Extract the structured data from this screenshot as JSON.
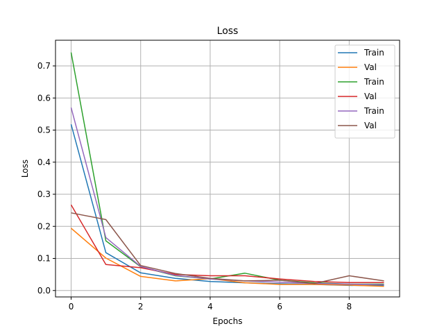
{
  "chart_data": {
    "type": "line",
    "title": "Loss",
    "xlabel": "Epochs",
    "ylabel": "Loss",
    "xlim": [
      -0.45,
      9.45
    ],
    "ylim": [
      -0.02,
      0.78
    ],
    "xticks": [
      0,
      2,
      4,
      6,
      8
    ],
    "yticks": [
      0.0,
      0.1,
      0.2,
      0.3,
      0.4,
      0.5,
      0.6,
      0.7
    ],
    "ytick_labels": [
      "0.0",
      "0.1",
      "0.2",
      "0.3",
      "0.4",
      "0.5",
      "0.6",
      "0.7"
    ],
    "grid": true,
    "legend_position": "top-right",
    "x": [
      0,
      1,
      2,
      3,
      4,
      5,
      6,
      7,
      8,
      9
    ],
    "series": [
      {
        "name": "Train",
        "color": "#1f77b4",
        "values": [
          0.518,
          0.118,
          0.055,
          0.038,
          0.028,
          0.024,
          0.021,
          0.019,
          0.016,
          0.015
        ]
      },
      {
        "name": "Val",
        "color": "#ff7f0e",
        "values": [
          0.194,
          0.101,
          0.044,
          0.03,
          0.037,
          0.024,
          0.019,
          0.019,
          0.017,
          0.013
        ]
      },
      {
        "name": "Train",
        "color": "#2ca02c",
        "values": [
          0.742,
          0.155,
          0.074,
          0.046,
          0.036,
          0.054,
          0.032,
          0.024,
          0.02,
          0.02
        ]
      },
      {
        "name": "Val",
        "color": "#d62728",
        "values": [
          0.267,
          0.081,
          0.071,
          0.05,
          0.046,
          0.046,
          0.036,
          0.028,
          0.025,
          0.025
        ]
      },
      {
        "name": "Train",
        "color": "#9467bd",
        "values": [
          0.57,
          0.165,
          0.075,
          0.047,
          0.036,
          0.03,
          0.026,
          0.022,
          0.02,
          0.018
        ]
      },
      {
        "name": "Val",
        "color": "#8c564b",
        "values": [
          0.242,
          0.221,
          0.078,
          0.053,
          0.038,
          0.03,
          0.032,
          0.022,
          0.046,
          0.03
        ]
      }
    ]
  }
}
